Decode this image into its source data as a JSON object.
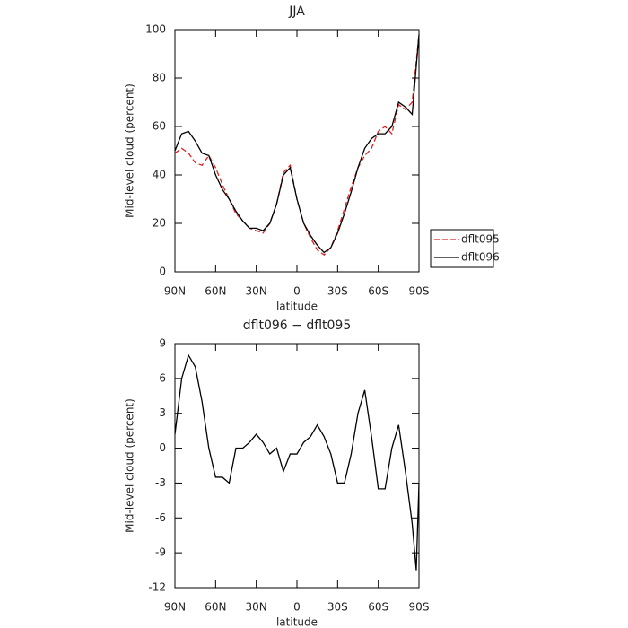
{
  "chart_data": [
    {
      "type": "line",
      "title": "JJA",
      "x_label": "latitude",
      "y_label": "Mid-level cloud (percent)",
      "x": [
        90,
        85,
        80,
        75,
        70,
        65,
        60,
        55,
        50,
        45,
        40,
        35,
        30,
        25,
        20,
        15,
        10,
        5,
        0,
        -5,
        -10,
        -15,
        -20,
        -25,
        -30,
        -35,
        -40,
        -45,
        -50,
        -55,
        -60,
        -65,
        -70,
        -75,
        -80,
        -85,
        -90
      ],
      "series": [
        {
          "name": "dflt095",
          "color": "#e02020",
          "dash": true,
          "values": [
            49,
            51,
            49,
            45,
            44,
            48,
            43,
            36,
            30,
            24,
            21,
            18,
            17,
            16,
            20,
            28,
            41,
            44,
            30,
            20,
            14,
            9,
            7,
            10,
            17,
            26,
            35,
            43,
            48,
            51,
            58,
            60,
            57,
            69,
            67,
            70,
            98
          ]
        },
        {
          "name": "dflt096",
          "color": "#000000",
          "dash": false,
          "values": [
            50,
            57,
            58,
            54,
            49,
            48,
            40,
            34,
            30,
            25,
            21,
            18,
            18,
            17,
            20,
            28,
            40,
            43,
            30,
            20,
            15,
            11,
            8,
            10,
            16,
            24,
            33,
            43,
            51,
            55,
            57,
            57,
            60,
            70,
            68,
            65,
            98
          ]
        }
      ],
      "xlim": [
        90,
        -90
      ],
      "xticks": [
        {
          "value": 90,
          "label": "90N"
        },
        {
          "value": 60,
          "label": "60N"
        },
        {
          "value": 30,
          "label": "30N"
        },
        0,
        {
          "value": -30,
          "label": "30S"
        },
        {
          "value": -60,
          "label": "60S"
        },
        {
          "value": -90,
          "label": "90S"
        }
      ],
      "ylim": [
        0,
        100
      ],
      "yticks": [
        0,
        20,
        40,
        60,
        80,
        100
      ],
      "legend": "outside-right"
    },
    {
      "type": "line",
      "title": "dflt096 − dflt095",
      "x_label": "latitude",
      "y_label": "Mid-level cloud (percent)",
      "x": [
        90,
        85,
        80,
        75,
        70,
        65,
        60,
        55,
        50,
        45,
        40,
        35,
        30,
        25,
        20,
        15,
        10,
        5,
        0,
        -5,
        -10,
        -15,
        -20,
        -25,
        -30,
        -35,
        -40,
        -45,
        -50,
        -55,
        -60,
        -65,
        -70,
        -75,
        -80,
        -85,
        -88,
        -90
      ],
      "series": [
        {
          "color": "#000000",
          "dash": false,
          "values": [
            1.2,
            6,
            8,
            7,
            4,
            0,
            -2.5,
            -2.5,
            -3,
            0,
            0,
            0.5,
            1.2,
            0.5,
            -0.5,
            0,
            -2,
            -0.5,
            -0.5,
            0.5,
            1,
            2,
            1,
            -0.5,
            -3,
            -3,
            -0.5,
            3,
            5,
            1,
            -3.5,
            -3.5,
            0,
            2,
            -2,
            -6.5,
            -10.5,
            -3
          ]
        }
      ],
      "xlim": [
        90,
        -90
      ],
      "xticks": [
        {
          "value": 90,
          "label": "90N"
        },
        {
          "value": 60,
          "label": "60N"
        },
        {
          "value": 30,
          "label": "30N"
        },
        0,
        {
          "value": -30,
          "label": "30S"
        },
        {
          "value": -60,
          "label": "60S"
        },
        {
          "value": -90,
          "label": "90S"
        }
      ],
      "ylim": [
        -12,
        9
      ],
      "yticks": [
        -12,
        -9,
        -6,
        -3,
        0,
        3,
        6,
        9
      ]
    }
  ]
}
